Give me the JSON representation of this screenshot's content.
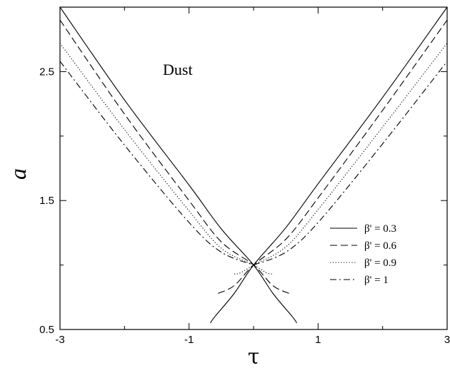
{
  "chart_data": {
    "type": "line",
    "title": "",
    "xlabel": "τ",
    "ylabel": "a",
    "xlim": [
      -3,
      3
    ],
    "ylim": [
      0.5,
      3.0
    ],
    "x_ticks": [
      -3,
      -1,
      1,
      3
    ],
    "x_tick_labels": [
      "-3",
      "-1",
      "1",
      "3"
    ],
    "y_ticks": [
      0.5,
      1.5,
      2.5
    ],
    "y_tick_labels": [
      "0.5",
      "1.5",
      "2.5"
    ],
    "grid": false,
    "legend_position": "right",
    "annotation": "Dust",
    "series": [
      {
        "name": "β' = 0.3",
        "style": "solid",
        "left": {
          "x": [
            -3.0,
            -2.0,
            -1.0,
            -0.5,
            0.0,
            0.3,
            0.6,
            0.67
          ],
          "y": [
            3.0,
            2.28,
            1.62,
            1.28,
            1.0,
            0.78,
            0.6,
            0.55
          ]
        },
        "right": {
          "x": [
            -0.67,
            -0.6,
            -0.3,
            0.0,
            0.5,
            1.0,
            2.0,
            3.0
          ],
          "y": [
            0.55,
            0.6,
            0.78,
            1.0,
            1.29,
            1.63,
            2.3,
            3.0
          ]
        }
      },
      {
        "name": "β' = 0.6",
        "style": "dashed",
        "left": {
          "x": [
            -3.0,
            -2.0,
            -1.0,
            -0.5,
            0.0,
            0.3,
            0.55
          ],
          "y": [
            2.9,
            2.17,
            1.5,
            1.18,
            1.0,
            0.84,
            0.78
          ]
        },
        "right": {
          "x": [
            -0.55,
            -0.3,
            0.0,
            0.5,
            1.0,
            2.0,
            3.0
          ],
          "y": [
            0.78,
            0.84,
            1.0,
            1.2,
            1.52,
            2.2,
            2.9
          ]
        }
      },
      {
        "name": "β' = 0.9",
        "style": "dotted",
        "left": {
          "x": [
            -3.0,
            -2.0,
            -1.0,
            -0.5,
            0.0,
            0.2,
            0.3
          ],
          "y": [
            2.72,
            2.05,
            1.42,
            1.13,
            1.0,
            0.94,
            0.93
          ]
        },
        "right": {
          "x": [
            -0.3,
            -0.2,
            0.0,
            0.5,
            1.0,
            2.0,
            3.0
          ],
          "y": [
            0.93,
            0.94,
            1.0,
            1.14,
            1.43,
            2.07,
            2.72
          ]
        }
      },
      {
        "name": "β' = 1",
        "style": "dashdot",
        "left": {
          "x": [
            -3.0,
            -2.0,
            -1.0,
            -0.5,
            0.0
          ],
          "y": [
            2.58,
            1.93,
            1.33,
            1.1,
            1.0
          ]
        },
        "right": {
          "x": [
            0.0,
            0.5,
            1.0,
            2.0,
            3.0
          ],
          "y": [
            1.0,
            1.1,
            1.33,
            1.94,
            2.58
          ]
        }
      }
    ]
  }
}
